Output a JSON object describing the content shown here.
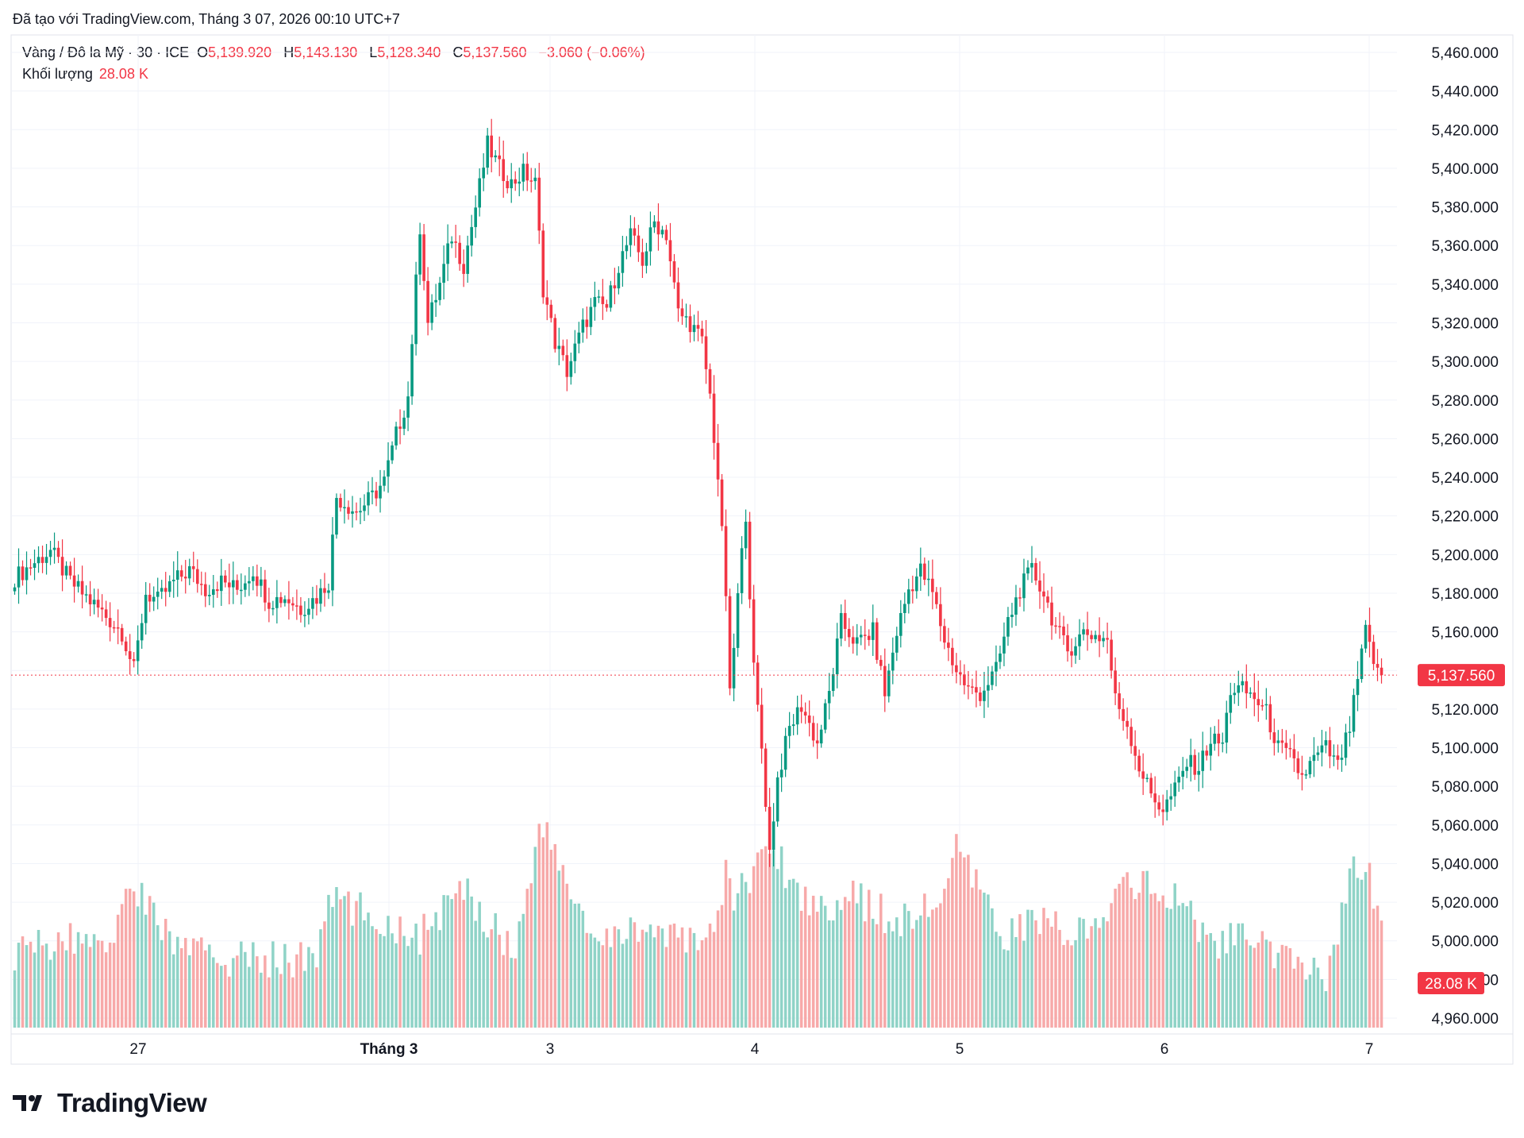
{
  "header": {
    "created_with": "Đã tạo với TradingView.com, Tháng 3 07, 2026 00:10 UTC+7"
  },
  "legend": {
    "symbol": "Vàng / Đô la Mỹ · 30 · ICE",
    "o_label": "O",
    "o_value": "5,139.920",
    "h_label": "H",
    "h_value": "5,143.130",
    "l_label": "L",
    "l_value": "5,128.340",
    "c_label": "C",
    "c_value": "5,137.560",
    "change": "−3.060 (−0.06%)",
    "volume_label": "Khối lượng",
    "volume_value": "28.08 K"
  },
  "colors": {
    "up": "#089981",
    "down": "#f23645",
    "vol_up": "#8fd3c7",
    "vol_down": "#f7a9a9",
    "grid": "#f0f3fa",
    "badge": "#f23645"
  },
  "price_badge": "5,137.560",
  "volume_badge": "28.08 K",
  "logo_text": "TradingView",
  "chart_data": {
    "type": "candlestick",
    "symbol": "Vàng / Đô la Mỹ",
    "interval": "30",
    "exchange": "ICE",
    "x_tick_labels": [
      "27",
      "Tháng 3",
      "3",
      "4",
      "5",
      "6",
      "7"
    ],
    "y_tick_labels": [
      "4,960.000",
      "4,980.000",
      "5,000.000",
      "5,020.000",
      "5,040.000",
      "5,060.000",
      "5,080.000",
      "5,100.000",
      "5,120.000",
      "5,140.000",
      "5,160.000",
      "5,180.000",
      "5,200.000",
      "5,220.000",
      "5,240.000",
      "5,260.000",
      "5,280.000",
      "5,300.000",
      "5,320.000",
      "5,340.000",
      "5,360.000",
      "5,380.000",
      "5,400.000",
      "5,420.000",
      "5,440.000",
      "5,460.000"
    ],
    "ylim": [
      4952,
      5465
    ],
    "last_price": 5137.56,
    "grid": true,
    "anchors": [
      [
        0,
        5188
      ],
      [
        5,
        5196
      ],
      [
        9,
        5202
      ],
      [
        14,
        5186
      ],
      [
        19,
        5176
      ],
      [
        23,
        5168
      ],
      [
        27,
        5160
      ],
      [
        30,
        5140
      ],
      [
        33,
        5180
      ],
      [
        36,
        5176
      ],
      [
        40,
        5186
      ],
      [
        44,
        5192
      ],
      [
        48,
        5182
      ],
      [
        52,
        5186
      ],
      [
        56,
        5182
      ],
      [
        60,
        5192
      ],
      [
        64,
        5176
      ],
      [
        68,
        5178
      ],
      [
        72,
        5172
      ],
      [
        76,
        5178
      ],
      [
        79,
        5186
      ],
      [
        81,
        5230
      ],
      [
        86,
        5222
      ],
      [
        90,
        5230
      ],
      [
        93,
        5238
      ],
      [
        96,
        5262
      ],
      [
        99,
        5282
      ],
      [
        102,
        5370
      ],
      [
        104,
        5320
      ],
      [
        107,
        5340
      ],
      [
        110,
        5365
      ],
      [
        113,
        5350
      ],
      [
        116,
        5380
      ],
      [
        119,
        5412
      ],
      [
        122,
        5400
      ],
      [
        125,
        5392
      ],
      [
        128,
        5398
      ],
      [
        131,
        5392
      ],
      [
        133,
        5338
      ],
      [
        136,
        5310
      ],
      [
        139,
        5295
      ],
      [
        143,
        5318
      ],
      [
        146,
        5330
      ],
      [
        149,
        5328
      ],
      [
        152,
        5350
      ],
      [
        155,
        5365
      ],
      [
        158,
        5352
      ],
      [
        161,
        5372
      ],
      [
        164,
        5366
      ],
      [
        167,
        5325
      ],
      [
        170,
        5320
      ],
      [
        173,
        5310
      ],
      [
        175,
        5282
      ],
      [
        177,
        5240
      ],
      [
        179,
        5180
      ],
      [
        180,
        5126
      ],
      [
        182,
        5178
      ],
      [
        184,
        5222
      ],
      [
        186,
        5140
      ],
      [
        188,
        5100
      ],
      [
        190,
        5046
      ],
      [
        192,
        5084
      ],
      [
        195,
        5110
      ],
      [
        198,
        5122
      ],
      [
        202,
        5102
      ],
      [
        205,
        5128
      ],
      [
        208,
        5165
      ],
      [
        212,
        5154
      ],
      [
        216,
        5160
      ],
      [
        219,
        5128
      ],
      [
        222,
        5160
      ],
      [
        225,
        5182
      ],
      [
        228,
        5192
      ],
      [
        231,
        5180
      ],
      [
        234,
        5156
      ],
      [
        237,
        5140
      ],
      [
        240,
        5130
      ],
      [
        243,
        5128
      ],
      [
        247,
        5140
      ],
      [
        250,
        5165
      ],
      [
        253,
        5182
      ],
      [
        256,
        5192
      ],
      [
        259,
        5180
      ],
      [
        262,
        5162
      ],
      [
        265,
        5150
      ],
      [
        269,
        5160
      ],
      [
        272,
        5158
      ],
      [
        275,
        5156
      ],
      [
        277,
        5125
      ],
      [
        280,
        5112
      ],
      [
        283,
        5090
      ],
      [
        286,
        5076
      ],
      [
        289,
        5068
      ],
      [
        292,
        5078
      ],
      [
        295,
        5092
      ],
      [
        298,
        5090
      ],
      [
        301,
        5104
      ],
      [
        304,
        5102
      ],
      [
        306,
        5130
      ],
      [
        309,
        5130
      ],
      [
        312,
        5126
      ],
      [
        315,
        5118
      ],
      [
        318,
        5100
      ],
      [
        321,
        5095
      ],
      [
        324,
        5085
      ],
      [
        327,
        5094
      ],
      [
        330,
        5100
      ],
      [
        333,
        5090
      ],
      [
        336,
        5110
      ],
      [
        338,
        5135
      ],
      [
        340,
        5160
      ],
      [
        343,
        5138
      ],
      [
        344,
        5138
      ]
    ],
    "volume": {
      "last": 28.08,
      "units": "K",
      "peaks": [
        [
          0,
          20
        ],
        [
          9,
          22
        ],
        [
          26,
          25
        ],
        [
          28,
          40
        ],
        [
          31,
          36
        ],
        [
          40,
          22
        ],
        [
          52,
          18
        ],
        [
          76,
          18
        ],
        [
          79,
          34
        ],
        [
          102,
          24
        ],
        [
          113,
          36
        ],
        [
          126,
          20
        ],
        [
          131,
          48
        ],
        [
          133,
          52
        ],
        [
          147,
          20
        ],
        [
          158,
          28
        ],
        [
          164,
          22
        ],
        [
          173,
          24
        ],
        [
          177,
          28
        ],
        [
          179,
          40
        ],
        [
          181,
          34
        ],
        [
          190,
          48
        ],
        [
          200,
          32
        ],
        [
          211,
          34
        ],
        [
          222,
          28
        ],
        [
          232,
          32
        ],
        [
          237,
          46
        ],
        [
          249,
          24
        ],
        [
          256,
          28
        ],
        [
          273,
          24
        ],
        [
          279,
          40
        ],
        [
          294,
          32
        ],
        [
          302,
          22
        ],
        [
          309,
          24
        ],
        [
          318,
          18
        ],
        [
          330,
          14
        ],
        [
          337,
          42
        ],
        [
          340,
          44
        ],
        [
          344,
          28
        ]
      ]
    }
  }
}
